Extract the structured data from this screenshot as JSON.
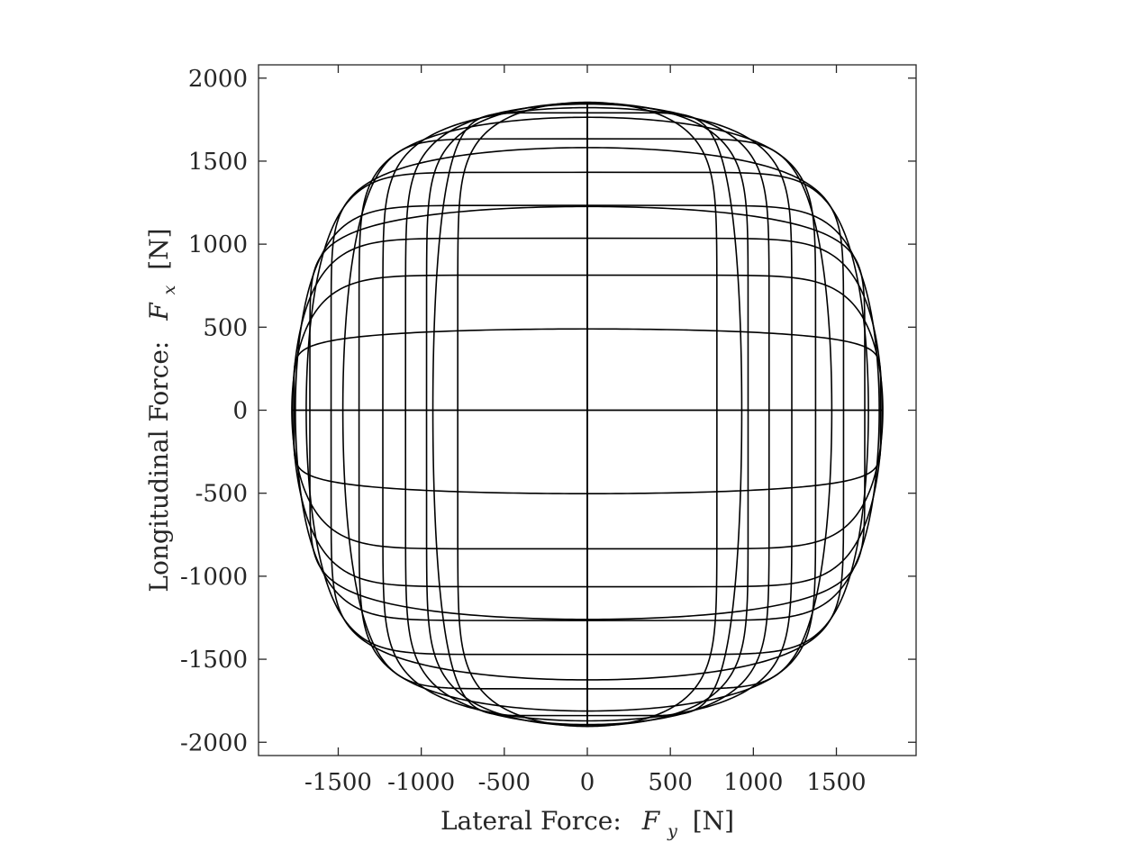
{
  "chart_data": {
    "type": "line",
    "title": "",
    "xlabel": {
      "text": "Lateral Force:",
      "var": "F",
      "sub": "y",
      "unit": "[N]"
    },
    "ylabel": {
      "text": "Longitudinal Force:",
      "var": "F",
      "sub": "x",
      "unit": "[N]"
    },
    "xlim": [
      -1980,
      1980
    ],
    "ylim": [
      -2080,
      2080
    ],
    "xticks": [
      -1500,
      -1000,
      -500,
      0,
      500,
      1000,
      1500
    ],
    "yticks": [
      -2000,
      -1500,
      -1000,
      -500,
      0,
      500,
      1000,
      1500,
      2000
    ],
    "xtick_labels": [
      "-1500",
      "-1000",
      "-500",
      "0",
      "500",
      "1000",
      "1500"
    ],
    "ytick_labels": [
      "-2000",
      "-1500",
      "-1000",
      "-500",
      "0",
      "500",
      "1000",
      "1500",
      "2000"
    ],
    "grid": false,
    "legend": "none",
    "friction_ellipse_model": {
      "Fy_max": 1780,
      "Fx_max_positive": 1855,
      "Fx_max_negative": 1905,
      "Fx_offset": 0,
      "shape_exponent": 2.6,
      "constant_slip_angle_curves": [
        -1,
        -0.985,
        -0.955,
        -0.9,
        -0.8,
        -0.62,
        -0.35,
        0,
        0.35,
        0.62,
        0.8,
        0.9,
        0.955,
        0.985,
        1
      ],
      "constant_slip_ratio_curves": [
        -1,
        -0.985,
        -0.96,
        -0.93,
        -0.88,
        -0.8,
        -0.65,
        -0.46,
        -0.17,
        0.17,
        0.46,
        0.65,
        0.8,
        0.88,
        0.93,
        0.96,
        0.985,
        1
      ]
    }
  }
}
